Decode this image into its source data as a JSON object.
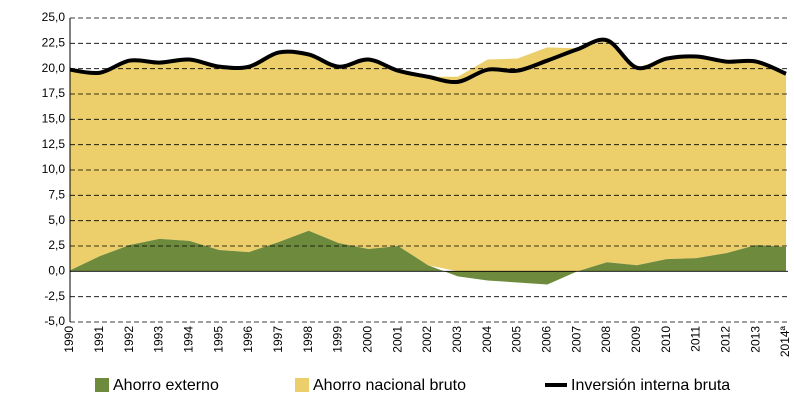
{
  "chart_data": {
    "type": "stacked-area-line",
    "categories": [
      "1990",
      "1991",
      "1992",
      "1993",
      "1994",
      "1995",
      "1996",
      "1997",
      "1998",
      "1999",
      "2000",
      "2001",
      "2002",
      "2003",
      "2004",
      "2005",
      "2006",
      "2007",
      "2008",
      "2009",
      "2010",
      "2011",
      "2012",
      "2013",
      "2014ª"
    ],
    "series": [
      {
        "name": "Ahorro externo",
        "color": "#6e8b3d",
        "kind": "area",
        "values": [
          0.1,
          1.5,
          2.6,
          3.2,
          3.0,
          2.1,
          1.9,
          2.9,
          4.0,
          2.8,
          2.2,
          2.5,
          0.6,
          -0.5,
          -0.9,
          -1.1,
          -1.3,
          0.0,
          0.9,
          0.6,
          1.2,
          1.3,
          1.8,
          2.6,
          2.4
        ]
      },
      {
        "name": "Ahorro nacional bruto",
        "color": "#eccf6b",
        "kind": "area",
        "values": [
          19.8,
          18.1,
          18.2,
          17.4,
          17.9,
          18.1,
          18.3,
          18.7,
          17.4,
          17.4,
          18.7,
          17.3,
          18.6,
          19.2,
          20.9,
          21.0,
          22.1,
          22.0,
          21.9,
          19.5,
          19.8,
          19.9,
          18.9,
          18.1,
          17.1
        ]
      },
      {
        "name": "Inversión interna bruta",
        "color": "#000000",
        "kind": "line",
        "values": [
          19.9,
          19.6,
          20.8,
          20.6,
          20.9,
          20.2,
          20.2,
          21.6,
          21.4,
          20.2,
          20.9,
          19.8,
          19.2,
          18.7,
          19.9,
          19.8,
          20.8,
          21.9,
          22.8,
          20.1,
          21.0,
          21.2,
          20.7,
          20.7,
          19.5
        ]
      }
    ],
    "ylim": [
      -5,
      25
    ],
    "yticks": [
      {
        "value": -5,
        "label": "-5,0"
      },
      {
        "value": -2.5,
        "label": "-2,5"
      },
      {
        "value": 0,
        "label": "0,0"
      },
      {
        "value": 2.5,
        "label": "2,5"
      },
      {
        "value": 5,
        "label": "5,0"
      },
      {
        "value": 7.5,
        "label": "7,5"
      },
      {
        "value": 10,
        "label": "10,0"
      },
      {
        "value": 12.5,
        "label": "12,5"
      },
      {
        "value": 15,
        "label": "15,0"
      },
      {
        "value": 17.5,
        "label": "17,5"
      },
      {
        "value": 20,
        "label": "20,0"
      },
      {
        "value": 22.5,
        "label": "22,5"
      },
      {
        "value": 25,
        "label": "25,0"
      }
    ],
    "grid": true,
    "legend": "bottom"
  }
}
